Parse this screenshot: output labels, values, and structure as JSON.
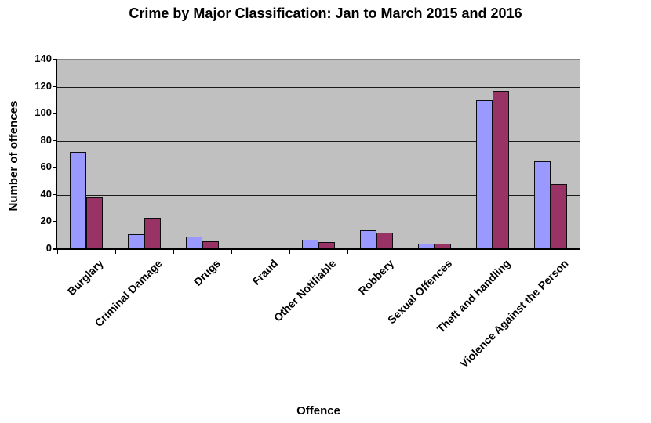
{
  "chart_data": {
    "type": "bar",
    "title": "Crime by Major Classification: Jan to March 2015 and 2016",
    "xlabel": "Offence",
    "ylabel": "Number of offences",
    "ylim": [
      0,
      140
    ],
    "ytick_step": 20,
    "yticks": [
      0,
      20,
      40,
      60,
      80,
      100,
      120,
      140
    ],
    "grid": true,
    "legend_position": "none",
    "categories": [
      "Burglary",
      "Criminal Damage",
      "Drugs",
      "Fraud",
      "Other Notifiable",
      "Robbery",
      "Sexual Offences",
      "Theft and handling",
      "Violence Against the Person"
    ],
    "series": [
      {
        "name": "2015",
        "color": "#9999FF",
        "values": [
          72,
          11,
          9,
          1,
          7,
          14,
          4,
          110,
          65
        ]
      },
      {
        "name": "2016",
        "color": "#993366",
        "values": [
          38,
          23,
          6,
          1,
          5,
          12,
          4,
          117,
          48
        ]
      }
    ],
    "colors": {
      "plot_background": "#C0C0C0",
      "gridline": "#1a1a1a",
      "bar_border": "#0d0d0d",
      "axis": "#000000",
      "plot_border": "#848484",
      "page_background": "#FFFFFF",
      "text": "#000000"
    }
  }
}
